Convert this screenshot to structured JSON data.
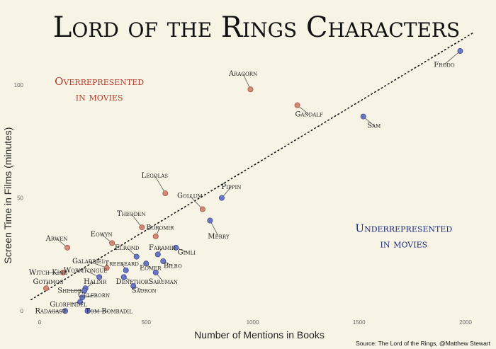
{
  "chart_data": {
    "type": "scatter",
    "title": "Lord of the Rings Characters",
    "xlabel": "Number of Mentions in Books",
    "ylabel": "Screen Time in Films (minutes)",
    "xlim": [
      -20,
      2040
    ],
    "ylim": [
      -4,
      115
    ],
    "x_ticks": [
      0,
      500,
      1000,
      1500,
      2000
    ],
    "y_ticks": [
      0,
      50,
      100
    ],
    "trend_line": [
      [
        -40,
        5
      ],
      [
        2035,
        123
      ]
    ],
    "colors": {
      "over": "#d08a78",
      "under": "#6a77c2",
      "over_text": "#b33a2a",
      "under_text": "#1b2a7a"
    },
    "regions": [
      {
        "line1": "Overrepresented",
        "line2": "in movies",
        "color": "over",
        "anchor": [
          280,
          100
        ]
      },
      {
        "line1": "Underrepresented",
        "line2": "in movies",
        "color": "under",
        "anchor": [
          1710,
          35
        ]
      }
    ],
    "points": [
      {
        "name": "Frodo",
        "x": 1975,
        "y": 115,
        "group": "under",
        "lx": 1900,
        "ly": 108
      },
      {
        "name": "Aragorn",
        "x": 990,
        "y": 98,
        "group": "over",
        "lx": 955,
        "ly": 104
      },
      {
        "name": "Gandalf",
        "x": 1210,
        "y": 91,
        "group": "over",
        "lx": 1265,
        "ly": 86
      },
      {
        "name": "Sam",
        "x": 1520,
        "y": 86,
        "group": "under",
        "lx": 1570,
        "ly": 81
      },
      {
        "name": "Legolas",
        "x": 590,
        "y": 52,
        "group": "over",
        "lx": 540,
        "ly": 59
      },
      {
        "name": "Gollum",
        "x": 765,
        "y": 45,
        "group": "over",
        "lx": 705,
        "ly": 50
      },
      {
        "name": "Pippin",
        "x": 855,
        "y": 50,
        "group": "under",
        "lx": 900,
        "ly": 54
      },
      {
        "name": "Merry",
        "x": 800,
        "y": 40,
        "group": "under",
        "lx": 840,
        "ly": 32
      },
      {
        "name": "Theoden",
        "x": 480,
        "y": 37,
        "group": "over",
        "lx": 430,
        "ly": 42
      },
      {
        "name": "Boromir",
        "x": 545,
        "y": 33,
        "group": "over",
        "lx": 565,
        "ly": 36
      },
      {
        "name": "Eowyn",
        "x": 340,
        "y": 30,
        "group": "over",
        "lx": 290,
        "ly": 33
      },
      {
        "name": "Arwen",
        "x": 130,
        "y": 28,
        "group": "over",
        "lx": 80,
        "ly": 31
      },
      {
        "name": "Gimli",
        "x": 640,
        "y": 28,
        "group": "under",
        "lx": 690,
        "ly": 25
      },
      {
        "name": "Elrond",
        "x": 455,
        "y": 24,
        "group": "under",
        "lx": 410,
        "ly": 27
      },
      {
        "name": "Faramir",
        "x": 555,
        "y": 25,
        "group": "under",
        "lx": 575,
        "ly": 27
      },
      {
        "name": "Galadriel",
        "x": 315,
        "y": 19,
        "group": "over",
        "lx": 230,
        "ly": 21
      },
      {
        "name": "Treebeard",
        "x": 405,
        "y": 18,
        "group": "under",
        "lx": 385,
        "ly": 20
      },
      {
        "name": "Eomer",
        "x": 500,
        "y": 21,
        "group": "under",
        "lx": 520,
        "ly": 18
      },
      {
        "name": "Bilbo",
        "x": 580,
        "y": 22,
        "group": "under",
        "lx": 625,
        "ly": 19
      },
      {
        "name": "Saruman",
        "x": 545,
        "y": 17,
        "group": "under",
        "lx": 580,
        "ly": 12
      },
      {
        "name": "Witch King",
        "x": 110,
        "y": 17,
        "group": "over",
        "lx": 40,
        "ly": 16
      },
      {
        "name": "Wormtongue",
        "x": 280,
        "y": 15,
        "group": "under",
        "lx": 215,
        "ly": 17
      },
      {
        "name": "Denethor",
        "x": 395,
        "y": 15,
        "group": "under",
        "lx": 435,
        "ly": 12
      },
      {
        "name": "Gothmog",
        "x": 30,
        "y": 10,
        "group": "over",
        "lx": 40,
        "ly": 12
      },
      {
        "name": "Haldir",
        "x": 215,
        "y": 10,
        "group": "under",
        "lx": 260,
        "ly": 12
      },
      {
        "name": "Shelob",
        "x": 210,
        "y": 9,
        "group": "under",
        "lx": 140,
        "ly": 8
      },
      {
        "name": "Sauron",
        "x": 440,
        "y": 11,
        "group": "under",
        "lx": 490,
        "ly": 8
      },
      {
        "name": "Celeborn",
        "x": 200,
        "y": 6,
        "group": "under",
        "lx": 255,
        "ly": 6
      },
      {
        "name": "Glorfindel",
        "x": 190,
        "y": 4,
        "group": "under",
        "lx": 135,
        "ly": 2
      },
      {
        "name": "Radagast",
        "x": 120,
        "y": 0,
        "group": "under",
        "lx": 50,
        "ly": -1
      },
      {
        "name": "Tom Bombadil",
        "x": 225,
        "y": 0,
        "group": "under",
        "lx": 325,
        "ly": -1
      }
    ]
  },
  "footer": {
    "source": "Source: The Lord of the Rings, @Matthew Stewart"
  }
}
